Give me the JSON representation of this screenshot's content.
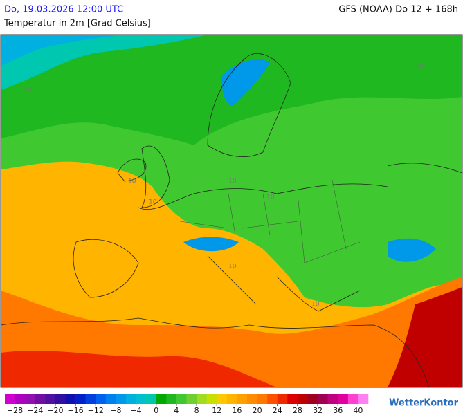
{
  "header": {
    "date": "Do, 19.03.2026 12:00 UTC",
    "title": "Temperatur in 2m [Grad Celsius]",
    "model": "GFS (NOAA) Do 12 + 168h"
  },
  "map": {
    "contour_labels": [
      "10",
      "10",
      "10",
      "10",
      "10",
      "10",
      "10",
      "10"
    ]
  },
  "legend": {
    "lim": [
      -30,
      42
    ],
    "ticks": [
      {
        "value": -28,
        "label": "−28"
      },
      {
        "value": -24,
        "label": "−24"
      },
      {
        "value": -20,
        "label": "−20"
      },
      {
        "value": -16,
        "label": "−16"
      },
      {
        "value": -12,
        "label": "−12"
      },
      {
        "value": -8,
        "label": "−8"
      },
      {
        "value": -4,
        "label": "−4"
      },
      0,
      4,
      8,
      12,
      16,
      20,
      24,
      28,
      32,
      36,
      40
    ],
    "colors": [
      "#d000d0",
      "#b000c0",
      "#9010b0",
      "#7010a0",
      "#5010a0",
      "#3010a0",
      "#1010b0",
      "#0020c8",
      "#0040e0",
      "#0060f0",
      "#0080f0",
      "#0098e8",
      "#00b0e0",
      "#00c0d0",
      "#00c8b0",
      "#00aa00",
      "#20b820",
      "#40c830",
      "#70d030",
      "#a0dc20",
      "#c8e000",
      "#ffc800",
      "#ffb400",
      "#ffa000",
      "#ff8c00",
      "#ff7800",
      "#ff5000",
      "#f02800",
      "#dc0000",
      "#c00000",
      "#a00020",
      "#a00050",
      "#c00080",
      "#e000a0",
      "#ff40d0",
      "#ff80f0"
    ]
  },
  "logo": "WetterKontor"
}
